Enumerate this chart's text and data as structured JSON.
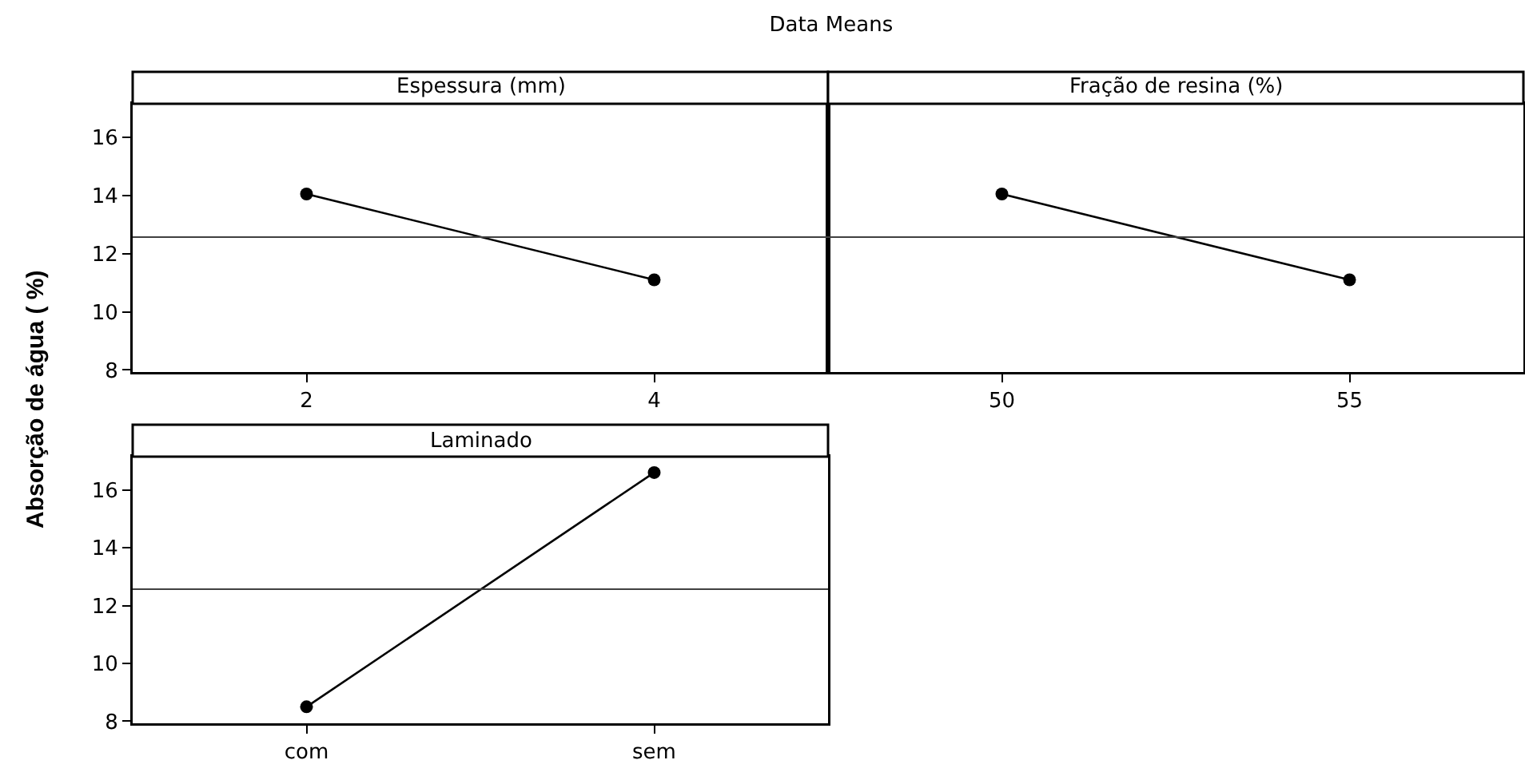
{
  "chart_data": [
    {
      "type": "line",
      "title": "Data Means",
      "xlabel": "Espessura (mm)",
      "ylabel": "Absorção de água ( %)",
      "x": [
        2,
        4
      ],
      "xlim": [
        1,
        5
      ],
      "xticks": [
        2,
        4
      ],
      "series": [
        {
          "color": "#000000",
          "values": [
            14.05,
            11.1
          ]
        }
      ],
      "ylim": [
        7.93,
        17.15
      ],
      "yticks": [
        8,
        10,
        12,
        14,
        16
      ],
      "ref_lines": [
        {
          "axis": "y",
          "value": 12.57,
          "color": "#404040"
        }
      ],
      "marker": "circle",
      "line_style": "solid"
    },
    {
      "type": "line",
      "xlabel": "Fração de resina (%)",
      "x": [
        50,
        55
      ],
      "xlim": [
        47.5,
        57.5
      ],
      "xticks": [
        50,
        55
      ],
      "series": [
        {
          "color": "#000000",
          "values": [
            14.05,
            11.1
          ]
        }
      ],
      "ylim": [
        7.93,
        17.15
      ],
      "yticks": [
        8,
        10,
        12,
        14,
        16
      ],
      "tick_labels": "x",
      "ref_lines": [
        {
          "axis": "y",
          "value": 12.57,
          "color": "#404040"
        }
      ],
      "marker": "circle",
      "line_style": "solid"
    },
    {
      "type": "line",
      "xlabel": "Laminado",
      "categories": [
        "com",
        "sem"
      ],
      "series": [
        {
          "color": "#000000",
          "values": [
            8.5,
            16.6
          ]
        }
      ],
      "ylim": [
        7.93,
        17.15
      ],
      "yticks": [
        8,
        10,
        12,
        14,
        16
      ],
      "ref_lines": [
        {
          "axis": "y",
          "value": 12.57,
          "color": "#404040"
        }
      ],
      "marker": "circle",
      "line_style": "solid"
    }
  ]
}
